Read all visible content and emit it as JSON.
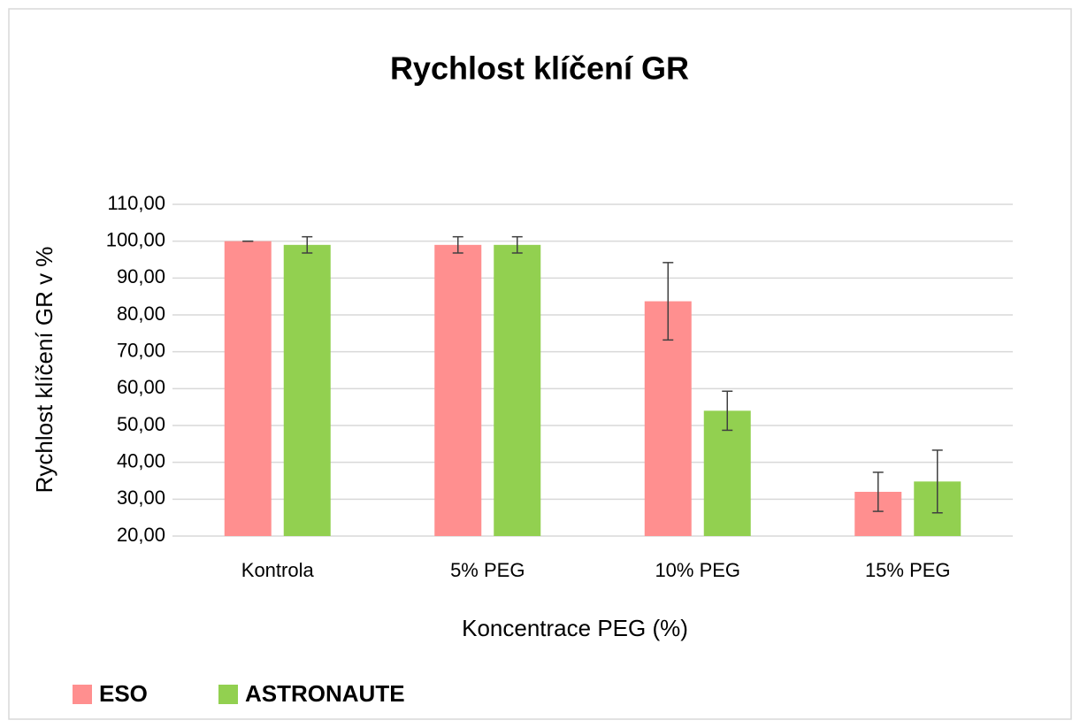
{
  "chart_data": {
    "type": "bar",
    "title": "Rychlost klíčení GR",
    "x_label": "Koncentrace PEG (%)",
    "y_label": "Rychlost klíčení GR  v %",
    "categories": [
      "Kontrola",
      "5% PEG",
      "10% PEG",
      "15% PEG"
    ],
    "series": [
      {
        "name": "ESO",
        "color": "#ff8f8f",
        "values": [
          100,
          99,
          83.7,
          32
        ],
        "errors": [
          0,
          2.2,
          10.5,
          5.3
        ]
      },
      {
        "name": "ASTRONAUTE",
        "color": "#92d050",
        "values": [
          99,
          99,
          54,
          34.8
        ],
        "errors": [
          2.2,
          2.2,
          5.3,
          8.5
        ]
      }
    ],
    "ylim": [
      20,
      110
    ],
    "yticks": [
      {
        "value": 20,
        "label": "20,00"
      },
      {
        "value": 30,
        "label": "30,00"
      },
      {
        "value": 40,
        "label": "40,00"
      },
      {
        "value": 50,
        "label": "50,00"
      },
      {
        "value": 60,
        "label": "60,00"
      },
      {
        "value": 70,
        "label": "70,00"
      },
      {
        "value": 80,
        "label": "80,00"
      },
      {
        "value": 90,
        "label": "90,00"
      },
      {
        "value": 100,
        "label": "100,00"
      },
      {
        "value": 110,
        "label": "110,00"
      }
    ],
    "grid": true,
    "legend": "bottom-left",
    "error_color": "#404040"
  }
}
